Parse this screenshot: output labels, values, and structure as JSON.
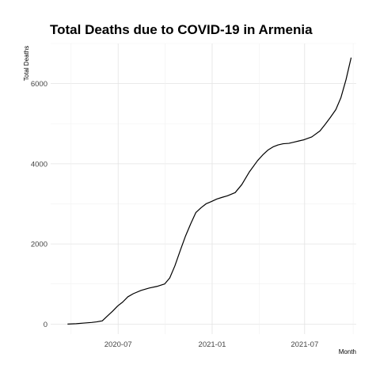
{
  "chart_data": {
    "type": "line",
    "title": "Total Deaths due to COVID-19 in Armenia",
    "xlabel": "Month",
    "ylabel": "Total Deaths",
    "x_tick_labels": [
      "2020-07",
      "2021-01",
      "2021-07"
    ],
    "x_ticks": [
      "2020-07-01",
      "2021-01-01",
      "2021-07-01"
    ],
    "y_ticks": [
      0,
      2000,
      4000,
      6000
    ],
    "y_tick_labels": [
      "0",
      "2000",
      "4000",
      "6000"
    ],
    "xlim": [
      "2020-02-20",
      "2021-10-10"
    ],
    "ylim": [
      -250,
      7000
    ],
    "grid": true,
    "legend": "none",
    "series": [
      {
        "color": "#000000",
        "x": [
          "2020-03-24",
          "2020-04-10",
          "2020-04-25",
          "2020-05-10",
          "2020-05-20",
          "2020-05-31",
          "2020-06-10",
          "2020-06-20",
          "2020-06-30",
          "2020-07-10",
          "2020-07-20",
          "2020-07-31",
          "2020-08-15",
          "2020-08-31",
          "2020-09-15",
          "2020-09-30",
          "2020-10-10",
          "2020-10-20",
          "2020-10-31",
          "2020-11-10",
          "2020-11-20",
          "2020-11-30",
          "2020-12-10",
          "2020-12-20",
          "2020-12-31",
          "2021-01-10",
          "2021-01-20",
          "2021-01-31",
          "2021-02-15",
          "2021-02-28",
          "2021-03-15",
          "2021-03-31",
          "2021-04-10",
          "2021-04-20",
          "2021-04-30",
          "2021-05-10",
          "2021-05-20",
          "2021-05-31",
          "2021-06-10",
          "2021-06-20",
          "2021-06-30",
          "2021-07-15",
          "2021-07-31",
          "2021-08-10",
          "2021-08-20",
          "2021-08-31",
          "2021-09-10",
          "2021-09-20",
          "2021-09-30"
        ],
        "y": [
          0,
          10,
          25,
          40,
          55,
          80,
          200,
          320,
          450,
          550,
          680,
          760,
          840,
          900,
          940,
          1000,
          1150,
          1450,
          1850,
          2200,
          2500,
          2780,
          2900,
          3000,
          3060,
          3120,
          3160,
          3200,
          3280,
          3480,
          3800,
          4080,
          4220,
          4340,
          4420,
          4470,
          4500,
          4510,
          4540,
          4570,
          4600,
          4670,
          4820,
          4980,
          5150,
          5350,
          5650,
          6100,
          6650
        ]
      }
    ]
  }
}
